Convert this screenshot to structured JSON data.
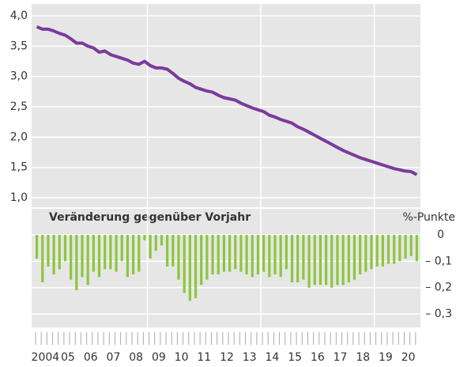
{
  "chart_data": [
    {
      "type": "line",
      "color": "#7b3a9c",
      "ylim": [
        1.0,
        4.0
      ],
      "yticks": [
        {
          "value": 1.0,
          "label": "1,0"
        },
        {
          "value": 1.5,
          "label": "1,5"
        },
        {
          "value": 2.0,
          "label": "2,0"
        },
        {
          "value": 2.5,
          "label": "2,5"
        },
        {
          "value": 3.0,
          "label": "3,0"
        },
        {
          "value": 3.5,
          "label": "3,5"
        },
        {
          "value": 4.0,
          "label": "4,0"
        }
      ],
      "grid": true,
      "values": [
        [
          3.82,
          3.78,
          3.78,
          3.75
        ],
        [
          3.71,
          3.68,
          3.62,
          3.55
        ],
        [
          3.55,
          3.5,
          3.47,
          3.4
        ],
        [
          3.42,
          3.36,
          3.33,
          3.3
        ],
        [
          3.27,
          3.22,
          3.2,
          3.25
        ],
        [
          3.18,
          3.14,
          3.14,
          3.12
        ],
        [
          3.05,
          2.97,
          2.92,
          2.88
        ],
        [
          2.82,
          2.79,
          2.76,
          2.74
        ],
        [
          2.69,
          2.65,
          2.63,
          2.61
        ],
        [
          2.56,
          2.52,
          2.48,
          2.45
        ],
        [
          2.42,
          2.36,
          2.33,
          2.29
        ],
        [
          2.26,
          2.23,
          2.17,
          2.13
        ],
        [
          2.08,
          2.03,
          1.98,
          1.93
        ],
        [
          1.88,
          1.83,
          1.78,
          1.74
        ],
        [
          1.7,
          1.66,
          1.63,
          1.6
        ],
        [
          1.57,
          1.54,
          1.51,
          1.48
        ],
        [
          1.46,
          1.44,
          1.43,
          1.38
        ]
      ]
    },
    {
      "type": "bar",
      "color": "#8dc63f",
      "title": "Veränderung gegenüber Vorjahr",
      "ylabel": "%-Punkte",
      "categories": [
        "2004",
        "05",
        "06",
        "07",
        "08",
        "09",
        "10",
        "11",
        "12",
        "13",
        "14",
        "15",
        "16",
        "17",
        "18",
        "19",
        "20"
      ],
      "ylim": [
        -0.33,
        0.0
      ],
      "yticks": [
        0,
        {
          "value": -0.1,
          "label": "– 0,1"
        },
        {
          "value": -0.2,
          "label": "– 0,2"
        },
        {
          "value": -0.3,
          "label": "– 0,3"
        }
      ],
      "grid": true,
      "values": [
        [
          -0.09,
          -0.18,
          -0.12,
          -0.15
        ],
        [
          -0.13,
          -0.1,
          -0.17,
          -0.21
        ],
        [
          -0.16,
          -0.19,
          -0.14,
          -0.16
        ],
        [
          -0.13,
          -0.13,
          -0.14,
          -0.1
        ],
        [
          -0.16,
          -0.15,
          -0.14,
          -0.02
        ],
        [
          -0.09,
          -0.06,
          -0.04,
          -0.12
        ],
        [
          -0.12,
          -0.17,
          -0.22,
          -0.25
        ],
        [
          -0.24,
          -0.19,
          -0.17,
          -0.15
        ],
        [
          -0.15,
          -0.14,
          -0.14,
          -0.13
        ],
        [
          -0.14,
          -0.15,
          -0.16,
          -0.15
        ],
        [
          -0.14,
          -0.16,
          -0.15,
          -0.16
        ],
        [
          -0.13,
          -0.18,
          -0.18,
          -0.17
        ],
        [
          -0.2,
          -0.19,
          -0.19,
          -0.19
        ],
        [
          -0.2,
          -0.19,
          -0.19,
          -0.18
        ],
        [
          -0.17,
          -0.15,
          -0.14,
          -0.13
        ],
        [
          -0.12,
          -0.12,
          -0.11,
          -0.11
        ],
        [
          -0.1,
          -0.09,
          -0.08,
          -0.1
        ]
      ]
    }
  ]
}
